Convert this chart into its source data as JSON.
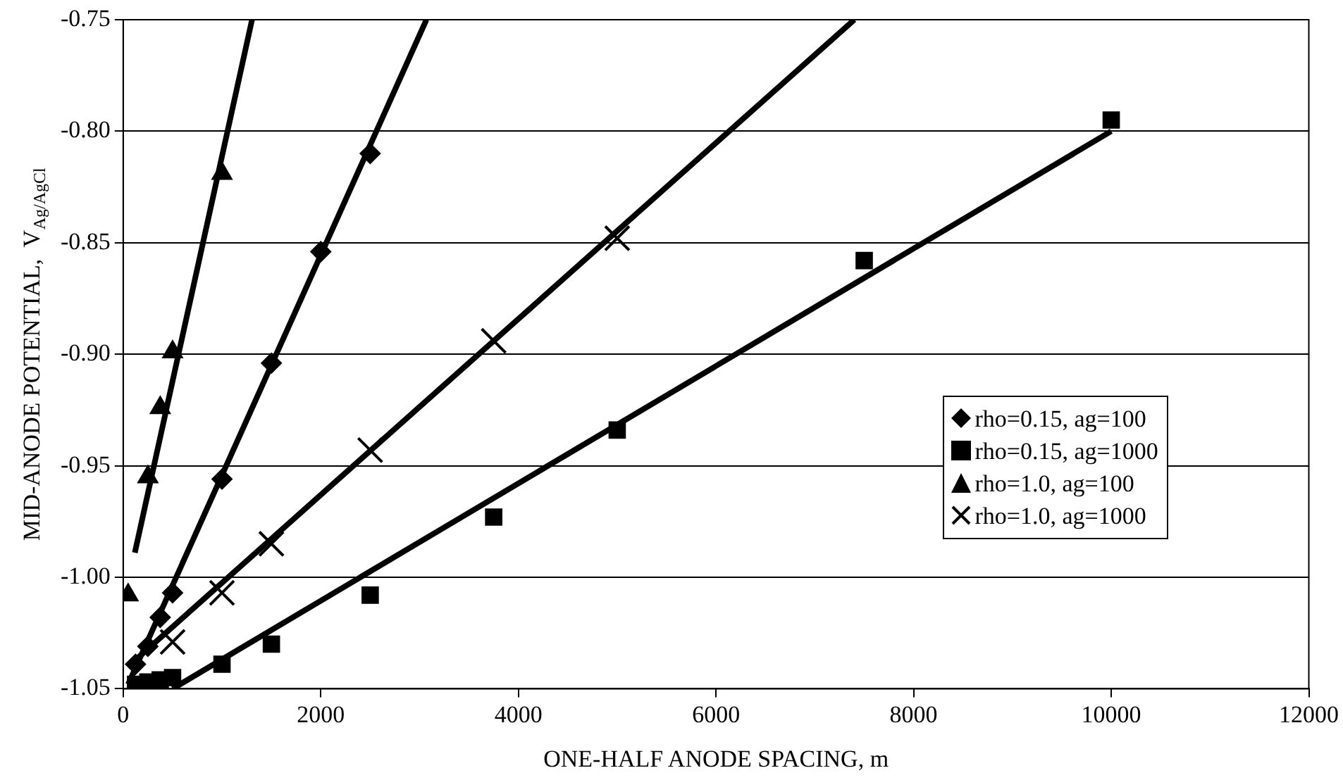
{
  "chart_data": {
    "type": "scatter",
    "xlabel": "ONE-HALF ANODE SPACING, m",
    "ylabel": "MID-ANODE POTENTIAL,  V$_{Ag/AgCl}$",
    "xlim": [
      0,
      12000
    ],
    "xticks": [
      0,
      2000,
      4000,
      6000,
      8000,
      10000,
      12000
    ],
    "ylim": [
      -1.05,
      -0.75
    ],
    "yticks": [
      {
        "value": -1.05,
        "label": "-1.05"
      },
      {
        "value": -1.0,
        "label": "-1.00"
      },
      {
        "value": -0.95,
        "label": "-0.95"
      },
      {
        "value": -0.9,
        "label": "-0.90"
      },
      {
        "value": -0.85,
        "label": "-0.85"
      },
      {
        "value": -0.8,
        "label": "-0.80"
      },
      {
        "value": -0.75,
        "label": "-0.75"
      }
    ],
    "grid": "y",
    "legend": "right",
    "series": [
      {
        "name": "rho=0.15, ag=100",
        "color": "#000000",
        "marker": "diamond",
        "x": [
          125,
          250,
          375,
          500,
          1000,
          1500,
          2000,
          2500
        ],
        "values": [
          -1.039,
          -1.031,
          -1.018,
          -1.007,
          -0.956,
          -0.904,
          -0.854,
          -0.81
        ]
      },
      {
        "name": "rho=0.15, ag=1000",
        "color": "#000000",
        "marker": "square",
        "x": [
          125,
          250,
          375,
          500,
          1000,
          1500,
          2500,
          3750,
          5000,
          7500,
          10000
        ],
        "values": [
          -1.048,
          -1.047,
          -1.046,
          -1.045,
          -1.039,
          -1.03,
          -1.008,
          -0.973,
          -0.934,
          -0.858,
          -0.795
        ]
      },
      {
        "name": "rho=1.0, ag=100",
        "color": "#000000",
        "marker": "triangle",
        "x": [
          50,
          250,
          375,
          500,
          1000
        ],
        "values": [
          -1.008,
          -0.955,
          -0.924,
          -0.899,
          -0.819
        ]
      },
      {
        "name": "rho=1.0, ag=1000",
        "color": "#000000",
        "marker": "cross",
        "x": [
          500,
          1000,
          1500,
          2500,
          3750,
          5000
        ],
        "values": [
          -1.029,
          -1.007,
          -0.985,
          -0.943,
          -0.894,
          -0.848
        ]
      },
      {
        "type": "line",
        "color": "#000000",
        "marker": "none",
        "x": [
          50,
          3069
        ],
        "values": [
          -1.048,
          -0.75
        ]
      },
      {
        "type": "line",
        "color": "#000000",
        "marker": "none",
        "x": [
          500,
          10000
        ],
        "values": [
          -1.05,
          -0.8
        ]
      },
      {
        "type": "line",
        "color": "#000000",
        "marker": "none",
        "x": [
          118,
          1304
        ],
        "values": [
          -0.989,
          -0.75
        ]
      },
      {
        "type": "line",
        "color": "#000000",
        "marker": "none",
        "x": [
          50,
          7400
        ],
        "values": [
          -1.04,
          -0.75
        ]
      }
    ]
  }
}
